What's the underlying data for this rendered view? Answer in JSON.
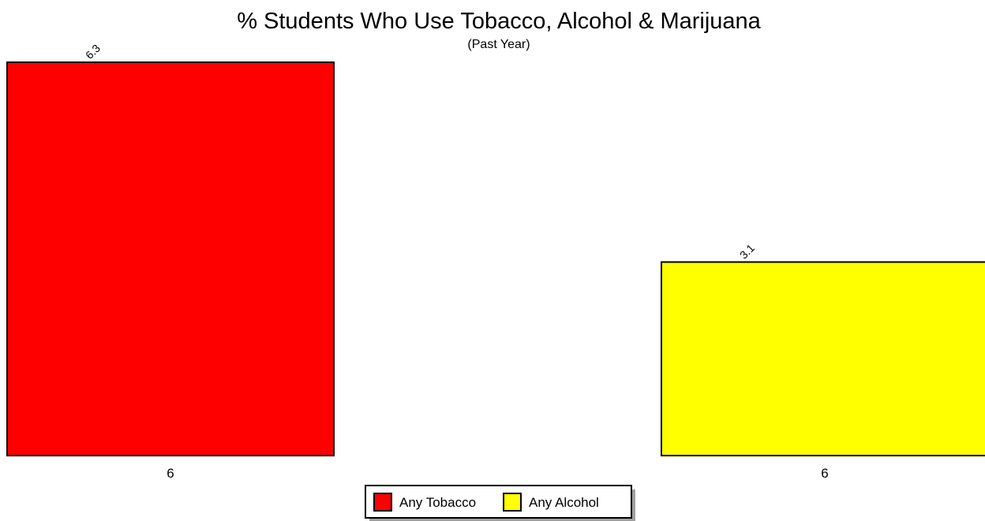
{
  "chart_data": {
    "type": "bar",
    "title": "% Students Who Use Tobacco, Alcohol & Marijuana",
    "subtitle": "(Past Year)",
    "categories": [
      "6"
    ],
    "series": [
      {
        "name": "Any Tobacco",
        "values": [
          6.3
        ],
        "color": "#ff0000"
      },
      {
        "name": "Any Alcohol",
        "values": [
          3.1
        ],
        "color": "#ffff00"
      }
    ],
    "data_labels": [
      "6.3",
      "3.1"
    ],
    "x_tick_labels": [
      "6",
      "6"
    ],
    "ylim": [
      0,
      6.3
    ],
    "grid": false,
    "legend_position": "bottom-center"
  }
}
